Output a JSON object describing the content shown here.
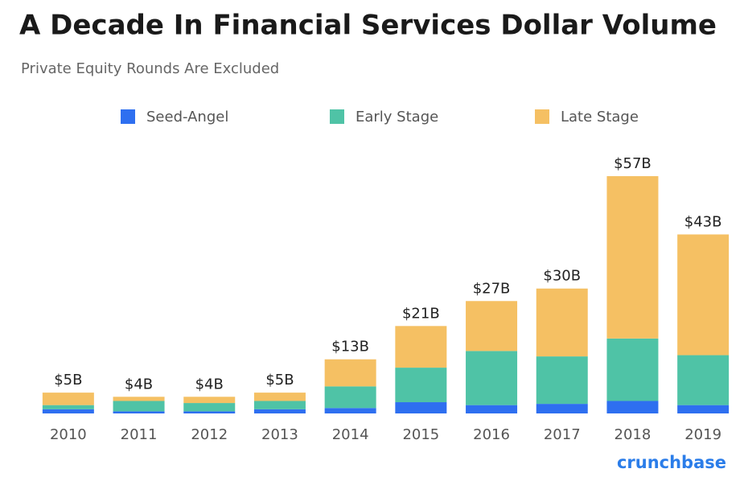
{
  "chart_data": {
    "type": "stacked_bar",
    "title": "A Decade In Financial Services Dollar Volume",
    "subtitle": "Private Equity Rounds Are Excluded",
    "categories": [
      "2010",
      "2011",
      "2012",
      "2013",
      "2014",
      "2015",
      "2016",
      "2017",
      "2018",
      "2019"
    ],
    "series": [
      {
        "name": "Seed-Angel",
        "color": "#2e6ff0",
        "values": [
          1,
          0.5,
          0.5,
          1,
          1.3,
          2.7,
          2,
          2.3,
          3,
          2
        ]
      },
      {
        "name": "Early Stage",
        "color": "#4fc3a6",
        "values": [
          1,
          2.5,
          2,
          2,
          5.2,
          8.3,
          13,
          11.4,
          15,
          12
        ]
      },
      {
        "name": "Late Stage",
        "color": "#f5c063",
        "values": [
          3,
          1,
          1.5,
          2,
          6.5,
          10,
          12,
          16.3,
          39,
          29
        ]
      }
    ],
    "totals": {
      "values": [
        5,
        4,
        4,
        5,
        13,
        21,
        27,
        30,
        57,
        43
      ],
      "value_labels": [
        "$5B",
        "$4B",
        "$4B",
        "$5B",
        "$13B",
        "$21B",
        "$27B",
        "$30B",
        "$57B",
        "$43B"
      ]
    },
    "source_logo": "crunchbase"
  }
}
